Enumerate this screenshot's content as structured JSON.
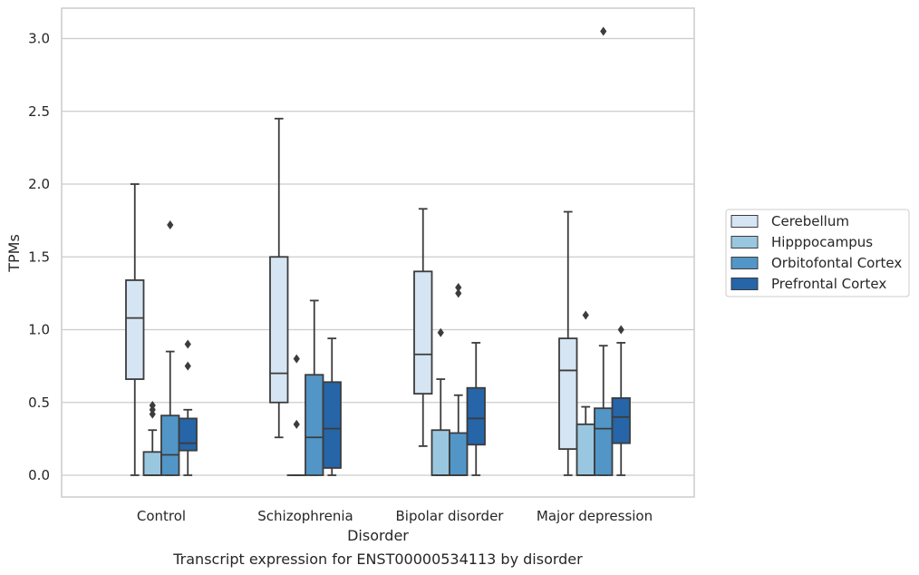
{
  "chart_data": {
    "type": "box",
    "caption": "Transcript expression for ENST00000534113 by disorder",
    "xlabel": "Disorder",
    "ylabel": "TPMs",
    "ylim": [
      -0.15,
      3.2
    ],
    "yticks": [
      0.0,
      0.5,
      1.0,
      1.5,
      2.0,
      2.5,
      3.0
    ],
    "ytick_labels": [
      "0.0",
      "0.5",
      "1.0",
      "1.5",
      "2.0",
      "2.5",
      "3.0"
    ],
    "grid": "horizontal",
    "legend_position": "right",
    "categories": [
      "Control",
      "Schizophrenia",
      "Bipolar disorder",
      "Major depression"
    ],
    "series": [
      {
        "name": "Cerebellum",
        "color": "#d6e5f4",
        "boxes": [
          {
            "whislo": 0.0,
            "q1": 0.66,
            "med": 1.08,
            "q3": 1.34,
            "whishi": 2.0,
            "fliers": []
          },
          {
            "whislo": 0.26,
            "q1": 0.5,
            "med": 0.7,
            "q3": 1.5,
            "whishi": 2.45,
            "fliers": []
          },
          {
            "whislo": 0.2,
            "q1": 0.56,
            "med": 0.83,
            "q3": 1.4,
            "whishi": 1.83,
            "fliers": []
          },
          {
            "whislo": 0.0,
            "q1": 0.18,
            "med": 0.72,
            "q3": 0.94,
            "whishi": 1.81,
            "fliers": []
          }
        ]
      },
      {
        "name": "Hipppocampus",
        "color": "#9ac7e0",
        "boxes": [
          {
            "whislo": 0.0,
            "q1": 0.0,
            "med": 0.0,
            "q3": 0.16,
            "whishi": 0.31,
            "fliers": [
              0.42,
              0.45,
              0.48
            ]
          },
          {
            "whislo": 0.0,
            "q1": 0.0,
            "med": 0.0,
            "q3": 0.0,
            "whishi": 0.0,
            "fliers": [
              0.35,
              0.8
            ]
          },
          {
            "whislo": 0.0,
            "q1": 0.0,
            "med": 0.0,
            "q3": 0.31,
            "whishi": 0.66,
            "fliers": [
              0.98
            ]
          },
          {
            "whislo": 0.0,
            "q1": 0.0,
            "med": 0.0,
            "q3": 0.35,
            "whishi": 0.47,
            "fliers": [
              1.1
            ]
          }
        ]
      },
      {
        "name": "Orbitofontal Cortex",
        "color": "#5296c7",
        "boxes": [
          {
            "whislo": 0.0,
            "q1": 0.0,
            "med": 0.14,
            "q3": 0.41,
            "whishi": 0.85,
            "fliers": [
              1.72
            ]
          },
          {
            "whislo": 0.0,
            "q1": 0.0,
            "med": 0.26,
            "q3": 0.69,
            "whishi": 1.2,
            "fliers": []
          },
          {
            "whislo": 0.0,
            "q1": 0.0,
            "med": 0.0,
            "q3": 0.29,
            "whishi": 0.55,
            "fliers": [
              1.25,
              1.29
            ]
          },
          {
            "whislo": 0.0,
            "q1": 0.0,
            "med": 0.32,
            "q3": 0.46,
            "whishi": 0.89,
            "fliers": [
              3.05
            ]
          }
        ]
      },
      {
        "name": "Prefrontal Cortex",
        "color": "#2565a8",
        "boxes": [
          {
            "whislo": 0.0,
            "q1": 0.17,
            "med": 0.22,
            "q3": 0.39,
            "whishi": 0.45,
            "fliers": [
              0.75,
              0.9
            ]
          },
          {
            "whislo": 0.0,
            "q1": 0.05,
            "med": 0.32,
            "q3": 0.64,
            "whishi": 0.94,
            "fliers": []
          },
          {
            "whislo": 0.0,
            "q1": 0.21,
            "med": 0.39,
            "q3": 0.6,
            "whishi": 0.91,
            "fliers": []
          },
          {
            "whislo": 0.0,
            "q1": 0.22,
            "med": 0.4,
            "q3": 0.53,
            "whishi": 0.91,
            "fliers": [
              1.0
            ]
          }
        ]
      }
    ]
  }
}
